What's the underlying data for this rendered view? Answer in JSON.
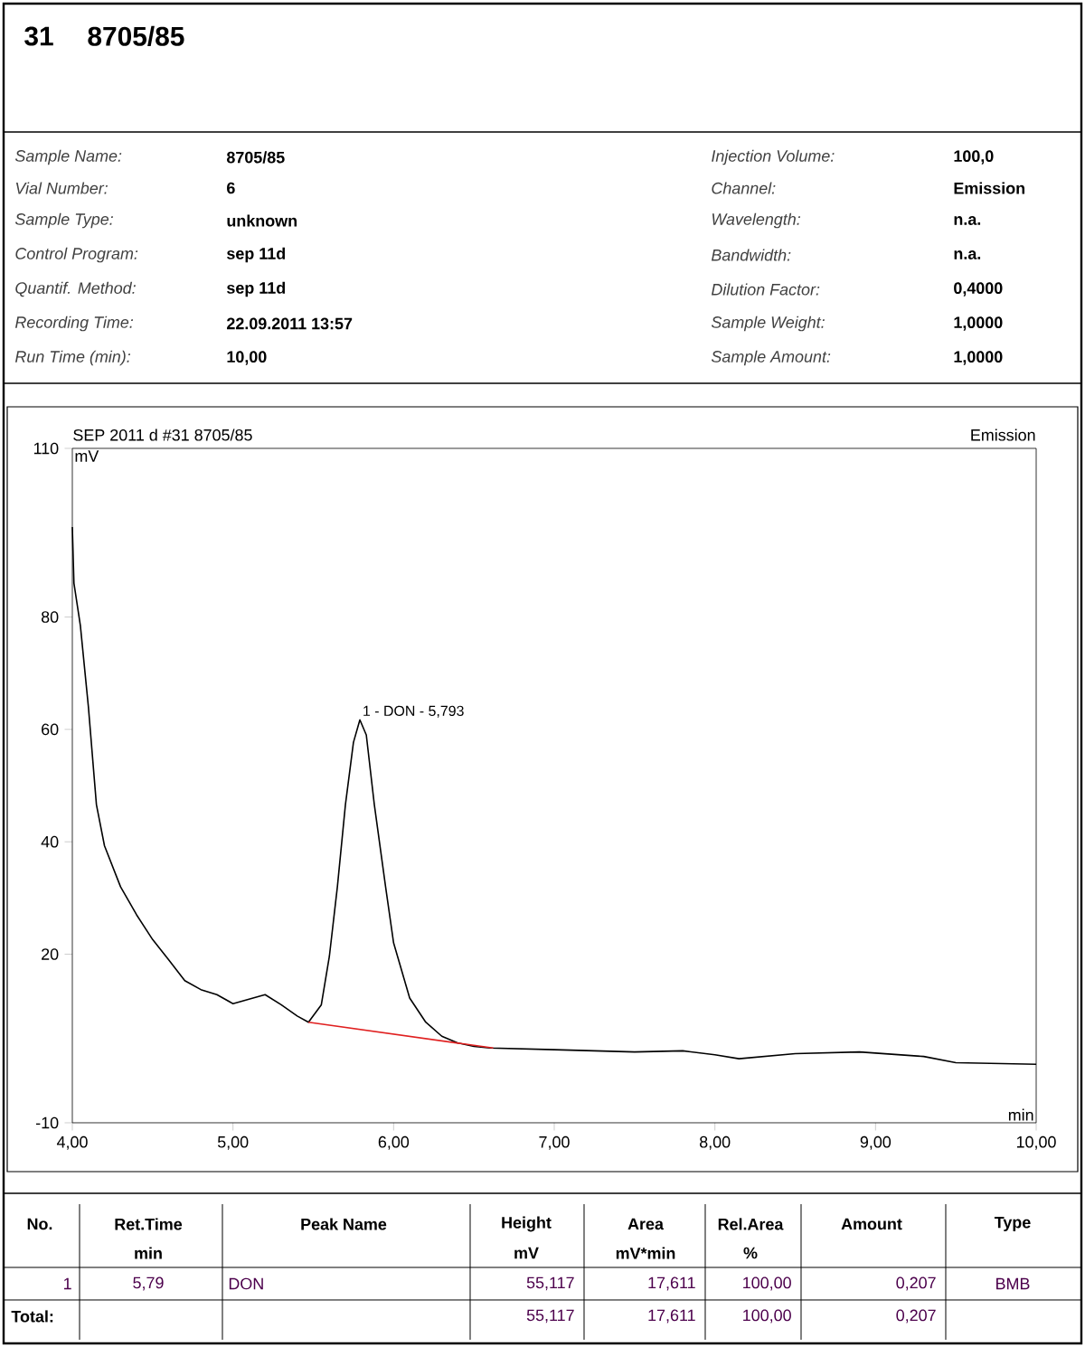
{
  "chart_data": {
    "type": "line",
    "title": "SEP 2011 d #31 8705/85",
    "subtitle": "Emission",
    "xlabel": "min",
    "ylabel": "mV",
    "xlim": [
      4,
      10
    ],
    "ylim": [
      -10,
      110
    ],
    "xticks": [
      {
        "value": 4,
        "label": "4,00"
      },
      {
        "value": 5,
        "label": "5,00"
      },
      {
        "value": 6,
        "label": "6,00"
      },
      {
        "value": 7,
        "label": "7,00"
      },
      {
        "value": 8,
        "label": "8,00"
      },
      {
        "value": 9,
        "label": "9,00"
      },
      {
        "value": 10,
        "label": "10,00"
      }
    ],
    "yticks": [
      -10,
      20,
      40,
      60,
      80,
      110
    ],
    "series": [
      {
        "color": "#000000",
        "x": [
          4.0,
          4.01,
          4.05,
          4.1,
          4.15,
          4.2,
          4.3,
          4.4,
          4.5,
          4.6,
          4.7,
          4.8,
          4.9,
          5.0,
          5.1,
          5.2,
          5.3,
          5.4,
          5.47,
          5.55,
          5.6,
          5.65,
          5.7,
          5.75,
          5.79,
          5.83,
          5.88,
          5.95,
          6.0,
          6.1,
          6.2,
          6.3,
          6.4,
          6.5,
          6.6,
          7.0,
          7.5,
          7.8,
          8.0,
          8.15,
          8.5,
          8.9,
          9.3,
          9.5,
          10.0
        ],
        "values": [
          96,
          86,
          78.5,
          64,
          46.6,
          39.3,
          32,
          27,
          22.6,
          19,
          15.3,
          13.7,
          12.8,
          11.2,
          12,
          12.8,
          11,
          9,
          7.9,
          11,
          19.6,
          32,
          46.6,
          57.7,
          61.7,
          59,
          46.6,
          32,
          22,
          12.2,
          7.9,
          5.4,
          4.2,
          3.6,
          3.3,
          3,
          2.6,
          2.8,
          2.1,
          1.4,
          2.3,
          2.6,
          1.8,
          0.7,
          0.4
        ]
      },
      {
        "color": "#e02020",
        "x": [
          5.47,
          6.62
        ],
        "values": [
          7.9,
          3.3
        ]
      }
    ],
    "annotations": [
      {
        "text": "1 - DON - 5,793",
        "x": 5.793,
        "y": 61.7
      },
      "31",
      "8705/85",
      "Sample Name:",
      "8705/85",
      "Vial Number:",
      "6",
      "Sample Type:",
      "unknown",
      "Control Program:",
      "sep 11d",
      "Quantif. Method:",
      "sep 11d",
      "Recording Time:",
      "22.09.2011 13:57",
      "Run Time (min):",
      "10,00",
      "Injection Volume:",
      "100,0",
      "Channel:",
      "Emission",
      "Wavelength:",
      "n.a.",
      "Bandwidth:",
      "n.a.",
      "Dilution Factor:",
      "0,4000",
      "Sample Weight:",
      "1,0000",
      "Sample Amount:",
      "1,0000",
      "No.",
      "Ret.Time",
      "Peak Name",
      "Height",
      "Area",
      "Rel.Area",
      "Amount",
      "Type",
      "min",
      "mV",
      "mV*min",
      "%",
      "1",
      "5,79",
      "DON",
      "55,117",
      "17,611",
      "100,00",
      "0,207",
      "BMB",
      "Total:",
      "55,117",
      "17,611",
      "100,00",
      "0,207"
    ]
  }
}
